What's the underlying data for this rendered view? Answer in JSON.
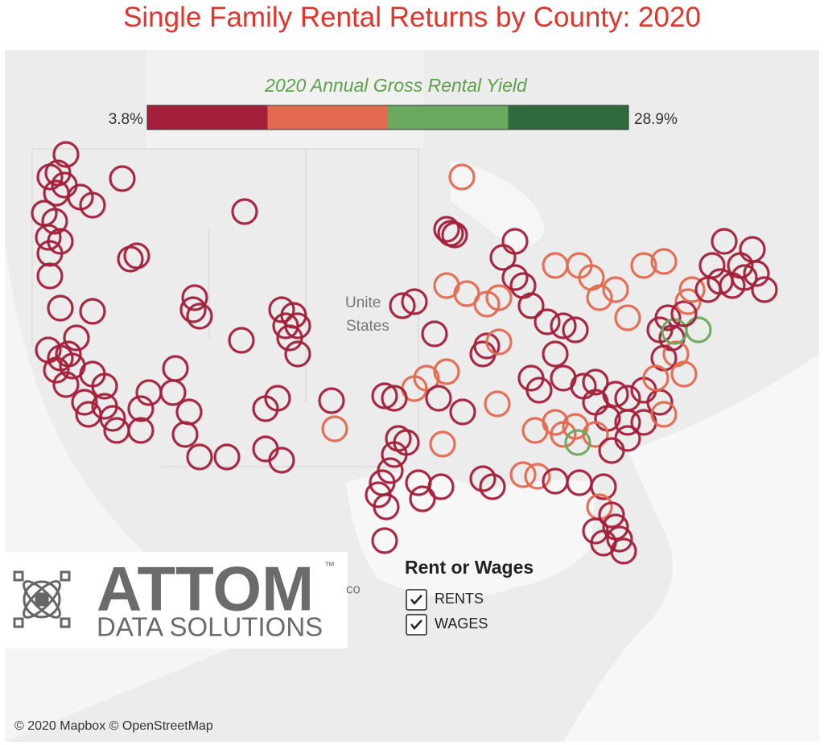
{
  "header": {
    "title": "Single Family Rental Returns by County: 2020"
  },
  "legend": {
    "title": "2020 Annual Gross Rental Yield",
    "min_label": "3.8%",
    "max_label": "28.9%",
    "colors": [
      "#a31f3a",
      "#e3694f",
      "#6aa85d",
      "#2f6a3e"
    ]
  },
  "map_labels": {
    "country_part1": "Unite",
    "country_part2": "States",
    "mexico": "co"
  },
  "filter": {
    "title": "Rent or Wages",
    "options": [
      "RENTS",
      "WAGES"
    ]
  },
  "logo": {
    "brand": "ATTOM",
    "trademark": "™",
    "tagline": "DATA SOLUTIONS"
  },
  "credits": "© 2020 Mapbox © OpenStreetMap"
}
